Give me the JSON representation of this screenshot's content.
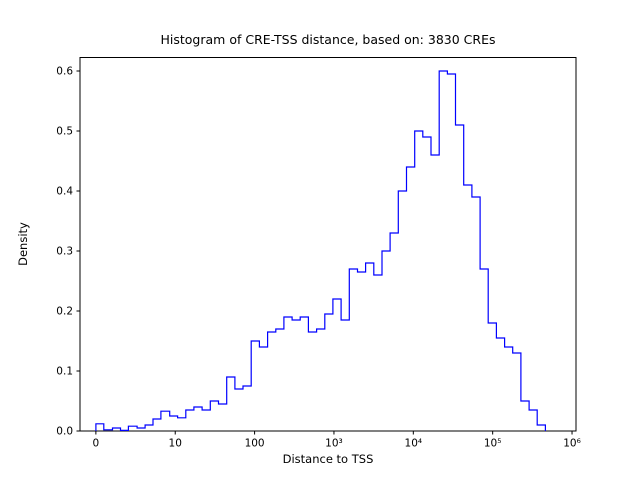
{
  "window": {
    "background_color": "#ffffff"
  },
  "chart_data": {
    "type": "histogram",
    "title": "Histogram of CRE-TSS distance, based on: 3830 CREs",
    "xlabel": "Distance to TSS",
    "ylabel": "Density",
    "n_cres": 3830,
    "line_color": "#0000ff",
    "axis_color": "#000000",
    "x_scale": "symlog",
    "grid": false,
    "legend": false,
    "ylim": [
      0,
      0.6225
    ],
    "x_range_axis_units": [
      -0.2,
      6.05
    ],
    "x_ticks": [
      {
        "value": 0,
        "label": "0"
      },
      {
        "value": 10,
        "label": "10"
      },
      {
        "value": 100,
        "label": "100"
      },
      {
        "value": 1000,
        "label": "10³"
      },
      {
        "value": 10000,
        "label": "10⁴"
      },
      {
        "value": 100000,
        "label": "10⁵"
      },
      {
        "value": 1000000,
        "label": "10⁶"
      }
    ],
    "y_ticks": [
      0.0,
      0.1,
      0.2,
      0.3,
      0.4,
      0.5,
      0.6
    ],
    "bin_edges": [
      0,
      1.0,
      2.1,
      3.1,
      4.1,
      5.2,
      6.2,
      7.2,
      8.2,
      9.3,
      10.7,
      13.6,
      17.2,
      21.8,
      27.7,
      35.1,
      44.5,
      56.4,
      71.4,
      90.6,
      115,
      146,
      185,
      234,
      297,
      376,
      476,
      604,
      766,
      971,
      1231,
      1560,
      1978,
      2507,
      3178,
      4028,
      5106,
      6473,
      8204,
      10400,
      13183,
      16711,
      21184,
      26853,
      34041,
      43152,
      54702,
      69343,
      87902,
      111430,
      141254,
      179060,
      226986,
      287735,
      364500,
      462100
    ],
    "densities": [
      0.012,
      0.002,
      0.005,
      0.001,
      0.008,
      0.005,
      0.01,
      0.02,
      0.033,
      0.025,
      0.022,
      0.035,
      0.04,
      0.035,
      0.05,
      0.045,
      0.09,
      0.07,
      0.075,
      0.15,
      0.14,
      0.165,
      0.17,
      0.19,
      0.185,
      0.19,
      0.165,
      0.17,
      0.195,
      0.22,
      0.185,
      0.27,
      0.265,
      0.28,
      0.26,
      0.3,
      0.33,
      0.4,
      0.44,
      0.5,
      0.49,
      0.46,
      0.6,
      0.595,
      0.51,
      0.41,
      0.39,
      0.27,
      0.18,
      0.155,
      0.14,
      0.13,
      0.05,
      0.035,
      0.01
    ]
  }
}
